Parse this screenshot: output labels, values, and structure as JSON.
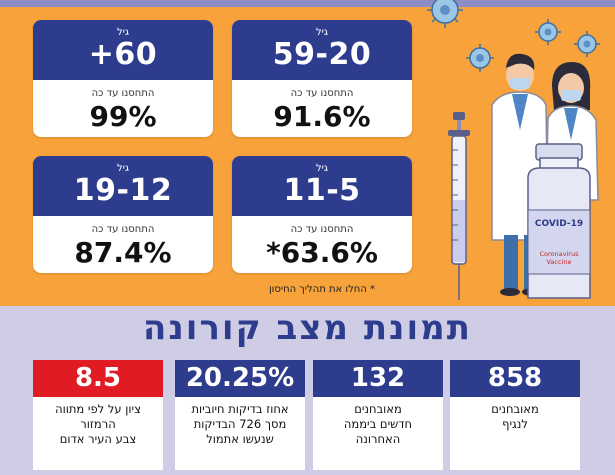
{
  "cards": [
    {
      "age_label": "גיל",
      "age": "59-20",
      "vacc_label": "התחסנו עד כה",
      "pct": "91.6%"
    },
    {
      "age_label": "גיל",
      "age": "+60",
      "vacc_label": "התחסנו עד כה",
      "pct": "99%"
    },
    {
      "age_label": "גיל",
      "age": "11-5",
      "vacc_label": "התחסנו עד כה",
      "pct": "*63.6%"
    },
    {
      "age_label": "גיל",
      "age": "19-12",
      "vacc_label": "התחסנו עד כה",
      "pct": "87.4%"
    }
  ],
  "footnote": "* החלו את תהליך החיסון",
  "illustration": {
    "vial_label": "COVID-19",
    "vial_sub1": "Coronavirus",
    "vial_sub2": "Vaccine"
  },
  "title": "תמונת מצב קורונה",
  "stats": [
    {
      "value": "858",
      "line1": "מאובחנים",
      "line2": "לנגיף",
      "line3": ""
    },
    {
      "value": "132",
      "line1": "מאובחנים",
      "line2": "חדשים ביממה",
      "line3": "האחרונה"
    },
    {
      "value": "20.25%",
      "line1": "אחוז בדיקות חיוביות",
      "line2": "מסך 726 הבדיקות",
      "line3": "שנעשו אתמול"
    },
    {
      "value": "8.5",
      "line1": "ציון על לפי מתווה",
      "line2": "הרמזור",
      "line3": "צבע העיר אדום"
    }
  ],
  "colors": {
    "navy": "#2d3c8c",
    "orange": "#f7a23a",
    "lavender": "#cfcde6",
    "red": "#e01b23"
  }
}
